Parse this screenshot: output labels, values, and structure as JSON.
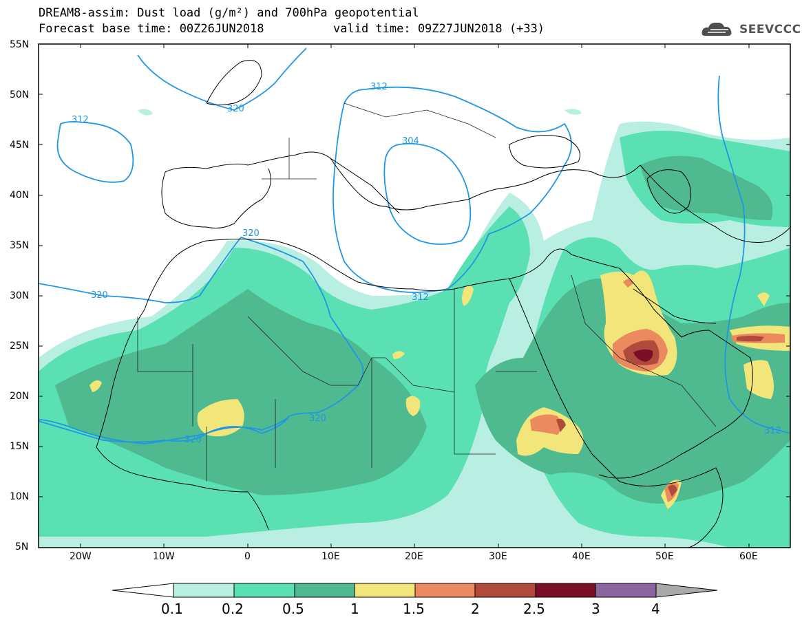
{
  "header": {
    "title_line1": "DREAM8-assim: Dust load (g/m²) and 700hPa geopotential",
    "title_line2": "Forecast base time: 00Z26JUN2018",
    "valid": "valid time: 09Z27JUN2018 (+33)"
  },
  "logo": {
    "name": "cloud-logo",
    "text": "SEEVCCC"
  },
  "axes": {
    "lat_labels": [
      "55N",
      "50N",
      "45N",
      "40N",
      "35N",
      "30N",
      "25N",
      "20N",
      "15N",
      "10N",
      "5N"
    ],
    "lon_labels": [
      "20W",
      "10W",
      "0",
      "10E",
      "20E",
      "30E",
      "40E",
      "50E",
      "60E"
    ]
  },
  "contours": {
    "labels": [
      "312",
      "320",
      "320",
      "312",
      "304",
      "320",
      "320",
      "320",
      "312",
      "312"
    ]
  },
  "colorbar": {
    "ticks": [
      "0.1",
      "0.2",
      "0.5",
      "1",
      "1.5",
      "2",
      "2.5",
      "3",
      "4"
    ],
    "colors": [
      "#b9eee2",
      "#5ae0b2",
      "#4fb98f",
      "#f2e67a",
      "#ec8a5f",
      "#b04a3c",
      "#7b0f27",
      "#8b64a0",
      "#aaaaaa"
    ]
  },
  "colors": {
    "contour": "#2196e6",
    "coast": "#000000",
    "border": "#222222"
  }
}
